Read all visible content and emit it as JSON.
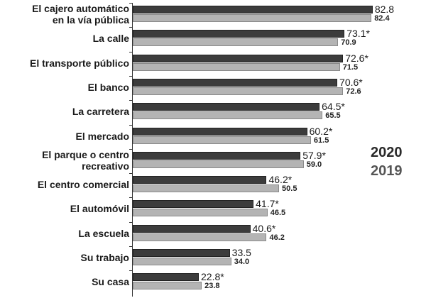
{
  "chart_data": {
    "type": "bar",
    "orientation": "horizontal",
    "title": "",
    "xlabel": "",
    "ylabel": "",
    "categories": [
      "El cajero automático en la vía pública",
      "La calle",
      "El transporte público",
      "El banco",
      "La carretera",
      "El mercado",
      "El parque o centro recreativo",
      "El centro comercial",
      "El automóvil",
      "La escuela",
      "Su trabajo",
      "Su casa"
    ],
    "category_lines": [
      [
        "El cajero automático",
        "en la vía pública"
      ],
      [
        "La calle"
      ],
      [
        "El transporte público"
      ],
      [
        "El banco"
      ],
      [
        "La carretera"
      ],
      [
        "El mercado"
      ],
      [
        "El parque o centro",
        "recreativo"
      ],
      [
        "El centro comercial"
      ],
      [
        "El automóvil"
      ],
      [
        "La escuela"
      ],
      [
        "Su trabajo"
      ],
      [
        "Su casa"
      ]
    ],
    "series": [
      {
        "name": "2020",
        "color": "#3c3c3c",
        "values": [
          82.8,
          73.1,
          72.6,
          70.6,
          64.5,
          60.2,
          57.9,
          46.2,
          41.7,
          40.6,
          33.5,
          22.8
        ],
        "labels": [
          "82.8",
          "73.1*",
          "72.6*",
          "70.6*",
          "64.5*",
          "60.2*",
          "57.9*",
          "46.2*",
          "41.7*",
          "40.6*",
          "33.5",
          "22.8*"
        ]
      },
      {
        "name": "2019",
        "color": "#b4b4b4",
        "values": [
          82.4,
          70.9,
          71.5,
          72.6,
          65.5,
          61.5,
          59.0,
          50.5,
          46.5,
          46.2,
          34.0,
          23.8
        ],
        "labels": [
          "82.4",
          "70.9",
          "71.5",
          "72.6",
          "65.5",
          "61.5",
          "59.0",
          "50.5",
          "46.5",
          "46.2",
          "34.0",
          "23.8"
        ]
      }
    ],
    "legend": {
      "position": "right",
      "entries": [
        "2020",
        "2019"
      ]
    },
    "grid": false
  }
}
